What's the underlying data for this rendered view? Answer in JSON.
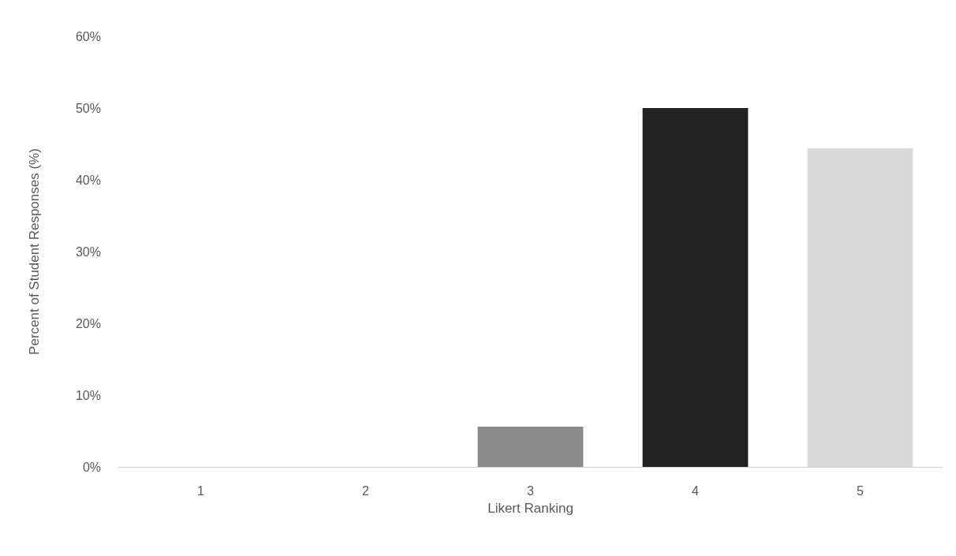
{
  "chart_data": {
    "type": "bar",
    "xlabel": "Likert Ranking",
    "ylabel": "Percent of Student Responses (%)",
    "categories": [
      "1",
      "2",
      "3",
      "4",
      "5"
    ],
    "values": [
      0,
      0,
      5.6,
      50,
      44.4
    ],
    "colors": [
      "#8a8a8a",
      "#8a8a8a",
      "#8a8a8a",
      "#222222",
      "#d9d9d9"
    ],
    "ylim": [
      0,
      60
    ],
    "yticks": [
      {
        "value": 0,
        "label": "0%"
      },
      {
        "value": 10,
        "label": "10%"
      },
      {
        "value": 20,
        "label": "20%"
      },
      {
        "value": 30,
        "label": "30%"
      },
      {
        "value": 40,
        "label": "40%"
      },
      {
        "value": 50,
        "label": "50%"
      },
      {
        "value": 60,
        "label": "60%"
      }
    ],
    "grid": false
  }
}
